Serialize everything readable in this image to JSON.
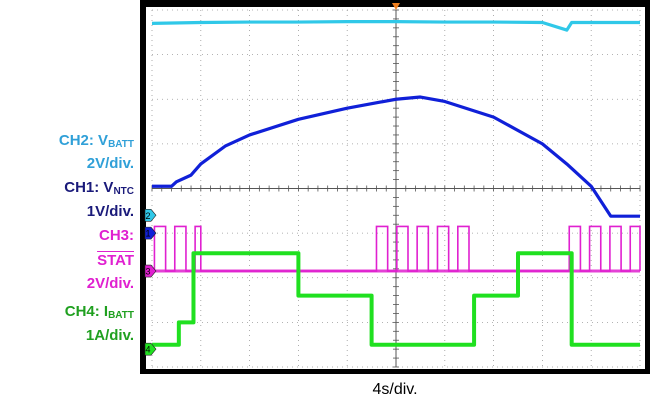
{
  "chart_data": {
    "type": "line",
    "title": "",
    "xlabel": "4s/div.",
    "ylabel": "",
    "grid": true,
    "x_divisions": 10,
    "y_divisions": 8,
    "x_units": "divisions",
    "y_units": "divisions",
    "xlim": [
      0,
      10
    ],
    "ylim": [
      -4,
      4
    ],
    "series": [
      {
        "name": "CH2: VBATT",
        "color": "#30c8e8",
        "scale": "2V/div.",
        "type": "analog",
        "points": [
          [
            0,
            3.7
          ],
          [
            1,
            3.72
          ],
          [
            2,
            3.73
          ],
          [
            3,
            3.73
          ],
          [
            4,
            3.74
          ],
          [
            5,
            3.74
          ],
          [
            6,
            3.73
          ],
          [
            7,
            3.73
          ],
          [
            8,
            3.72
          ],
          [
            8.5,
            3.55
          ],
          [
            8.6,
            3.72
          ],
          [
            9,
            3.72
          ],
          [
            10,
            3.72
          ]
        ]
      },
      {
        "name": "CH1: VNTC",
        "color": "#1020d8",
        "scale": "1V/div.",
        "type": "analog",
        "points": [
          [
            0,
            0.05
          ],
          [
            0.4,
            0.05
          ],
          [
            0.5,
            0.15
          ],
          [
            0.8,
            0.3
          ],
          [
            1,
            0.55
          ],
          [
            1.5,
            0.95
          ],
          [
            2,
            1.2
          ],
          [
            3,
            1.55
          ],
          [
            4,
            1.8
          ],
          [
            5,
            2.0
          ],
          [
            5.5,
            2.05
          ],
          [
            6,
            1.95
          ],
          [
            7,
            1.6
          ],
          [
            8,
            1.0
          ],
          [
            8.5,
            0.55
          ],
          [
            9,
            0.05
          ],
          [
            9.4,
            -0.62
          ],
          [
            10,
            -0.62
          ]
        ]
      },
      {
        "name": "CH3: STAT",
        "color": "#e020d0",
        "scale": "2V/div.",
        "type": "digital",
        "low": -1.85,
        "high": -0.85,
        "idle": -1.85,
        "bursts": [
          [
            0.05,
            1.0
          ],
          [
            4.6,
            6.65
          ],
          [
            8.55,
            10
          ]
        ],
        "pulses_per_div": 2.4
      },
      {
        "name": "CH4: IBATT",
        "color": "#20e020",
        "scale": "1A/div.",
        "type": "step",
        "points": [
          [
            0,
            -3.5
          ],
          [
            0.55,
            -3.5
          ],
          [
            0.55,
            -3.0
          ],
          [
            0.85,
            -3.0
          ],
          [
            0.85,
            -1.45
          ],
          [
            3.0,
            -1.45
          ],
          [
            3.0,
            -2.4
          ],
          [
            4.5,
            -2.4
          ],
          [
            4.5,
            -3.5
          ],
          [
            6.6,
            -3.5
          ],
          [
            6.6,
            -2.4
          ],
          [
            7.5,
            -2.4
          ],
          [
            7.5,
            -1.45
          ],
          [
            8.6,
            -1.45
          ],
          [
            8.6,
            -3.5
          ],
          [
            10,
            -3.5
          ]
        ]
      }
    ],
    "channel_markers": [
      {
        "id": "2",
        "color": "#30c8e8",
        "level": -0.6
      },
      {
        "id": "1",
        "color": "#1020d8",
        "level": -1.0
      },
      {
        "id": "3",
        "color": "#e020d0",
        "level": -1.85
      },
      {
        "id": "4",
        "color": "#20e020",
        "level": -3.6
      }
    ],
    "trigger_marker_x": 5.0
  },
  "legend": {
    "ch2_prefix": "CH2: V",
    "ch2_sub": "BATT",
    "ch2_scale": "2V/div.",
    "ch1_prefix": "CH1: V",
    "ch1_sub": "NTC",
    "ch1_scale": "1V/div.",
    "ch3_prefix": "CH3:",
    "ch3_name": "STAT",
    "ch3_scale": "2V/div.",
    "ch4_prefix": "CH4: I",
    "ch4_sub": "BATT",
    "ch4_scale": "1A/div."
  },
  "colors": {
    "ch1": "#1020d8",
    "ch2": "#30c8e8",
    "ch3": "#e020d0",
    "ch4": "#20e020",
    "grid": "#9a9a9a"
  }
}
